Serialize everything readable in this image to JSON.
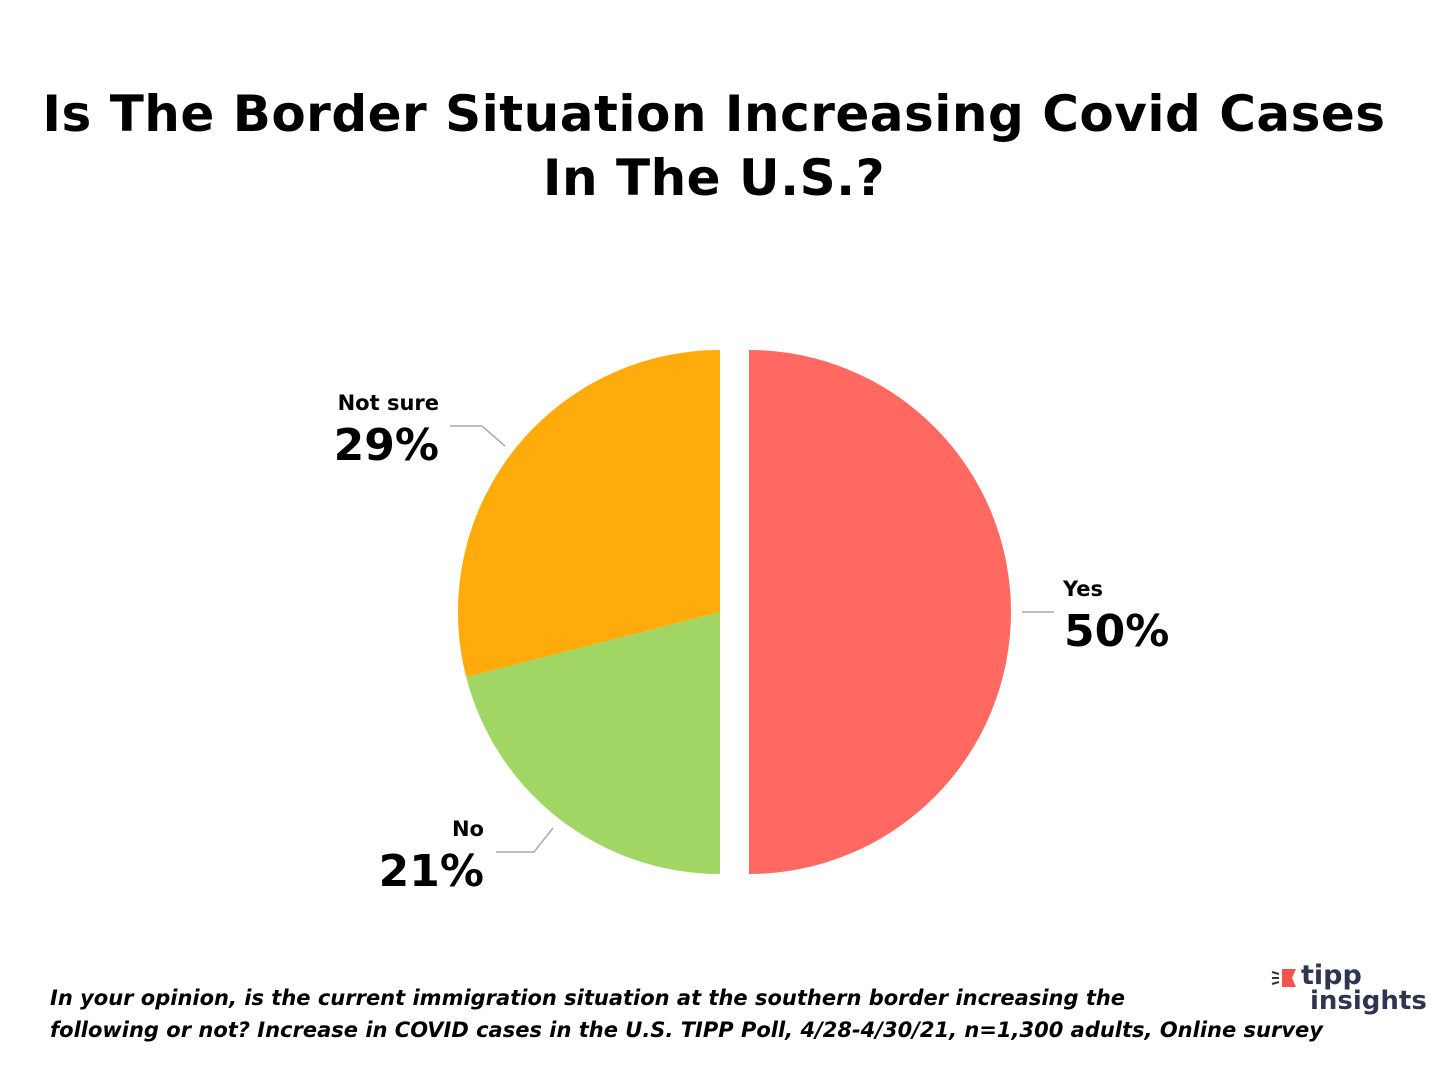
{
  "chart_data": {
    "type": "pie",
    "title_lines": [
      "Is The Border Situation Increasing Covid Cases",
      "In The U.S.?"
    ],
    "slices": [
      {
        "label": "Yes",
        "value": 50,
        "display": "50%",
        "color": "#ff6961",
        "exploded": true
      },
      {
        "label": "No",
        "value": 21,
        "display": "21%",
        "color": "#a2d664",
        "exploded": false
      },
      {
        "label": "Not sure",
        "value": 29,
        "display": "29%",
        "color": "#ffab0b",
        "exploded": false
      }
    ],
    "start_angle": "12 o'clock, clockwise",
    "legend": "none (data labels)"
  },
  "footnote": {
    "line1": "In your opinion, is the current immigration situation at the southern border increasing the",
    "line2": "following or not? Increase in COVID cases in the U.S.  TIPP Poll, 4/28-4/30/21, n=1,300 adults, Online survey"
  },
  "logo": {
    "line1": "tipp",
    "line2": "insights",
    "accent": "#f0544f",
    "text_color": "#2f3550"
  }
}
